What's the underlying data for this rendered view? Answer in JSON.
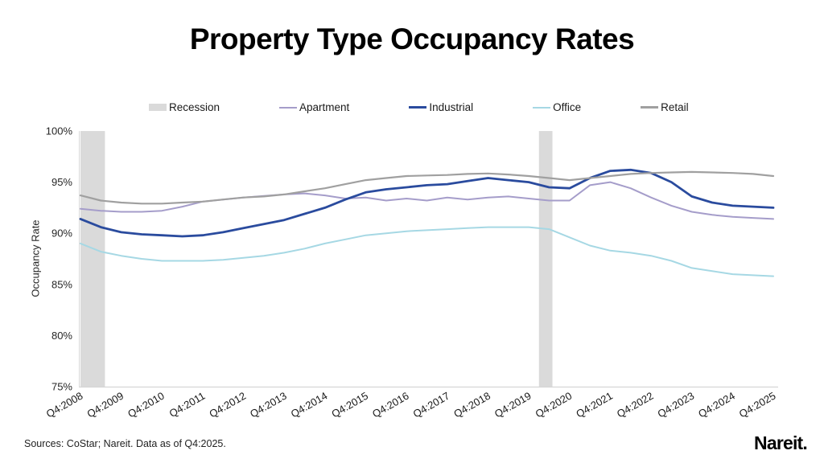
{
  "title": "Property Type Occupancy Rates",
  "legend": {
    "items": [
      "Recession",
      "Apartment",
      "Industrial",
      "Office",
      "Retail"
    ]
  },
  "chart_data": {
    "type": "line",
    "title": "Property Type Occupancy Rates",
    "xlabel": "",
    "ylabel": "Occupancy Rate",
    "ylim": [
      75,
      100
    ],
    "grid": false,
    "legend_position": "top",
    "y_axis": {
      "tick_values": [
        100,
        95,
        90,
        85,
        80,
        75
      ],
      "tick_labels": [
        "100%",
        "95%",
        "90%",
        "85%",
        "80%",
        "75%"
      ]
    },
    "x_axis": {
      "labels": [
        "Q4:2008",
        "Q4:2009",
        "Q4:2010",
        "Q4:2011",
        "Q4:2012",
        "Q4:2013",
        "Q4:2014",
        "Q4:2015",
        "Q4:2016",
        "Q4:2017",
        "Q4:2018",
        "Q4:2019",
        "Q4:2020",
        "Q4:2021",
        "Q4:2022",
        "Q4:2023",
        "Q4:2024",
        "Q4:2025"
      ],
      "angle_deg": -30
    },
    "sampling": {
      "start": "Q4:2008",
      "end": "Q4:2025",
      "points_per_year": 2
    },
    "recession_bands": [
      {
        "t_start": 0,
        "t_end": 0.6
      },
      {
        "t_start": 11.25,
        "t_end": 11.58
      }
    ],
    "band_color": "#dadada",
    "series": [
      {
        "name": "Apartment",
        "color": "#a59dca",
        "stroke_width": 2,
        "values": [
          92.4,
          92.2,
          92.1,
          92.1,
          92.2,
          92.6,
          93.1,
          93.3,
          93.5,
          93.65,
          93.8,
          93.9,
          93.7,
          93.4,
          93.5,
          93.2,
          93.4,
          93.2,
          93.5,
          93.3,
          93.5,
          93.6,
          93.4,
          93.2,
          93.2,
          94.7,
          95.0,
          94.4,
          93.5,
          92.7,
          92.1,
          91.8,
          91.6,
          91.5,
          91.4
        ]
      },
      {
        "name": "Industrial",
        "color": "#2a4b9e",
        "stroke_width": 2.8,
        "values": [
          91.4,
          90.6,
          90.1,
          89.9,
          89.8,
          89.7,
          89.8,
          90.1,
          90.5,
          90.9,
          91.3,
          91.9,
          92.5,
          93.3,
          94.0,
          94.3,
          94.5,
          94.7,
          94.8,
          95.1,
          95.4,
          95.2,
          95.0,
          94.5,
          94.4,
          95.4,
          96.1,
          96.2,
          95.9,
          95.0,
          93.6,
          93.0,
          92.7,
          92.6,
          92.5
        ]
      },
      {
        "name": "Office",
        "color": "#a6d8e4",
        "stroke_width": 2,
        "values": [
          89.0,
          88.2,
          87.8,
          87.5,
          87.3,
          87.3,
          87.3,
          87.4,
          87.6,
          87.8,
          88.1,
          88.5,
          89.0,
          89.4,
          89.8,
          90.0,
          90.2,
          90.3,
          90.4,
          90.5,
          90.6,
          90.6,
          90.6,
          90.4,
          89.6,
          88.8,
          88.3,
          88.1,
          87.8,
          87.3,
          86.6,
          86.3,
          86.0,
          85.9,
          85.8
        ]
      },
      {
        "name": "Retail",
        "color": "#a0a0a0",
        "stroke_width": 2.2,
        "values": [
          93.7,
          93.2,
          93.0,
          92.9,
          92.9,
          93.0,
          93.1,
          93.3,
          93.5,
          93.6,
          93.8,
          94.1,
          94.4,
          94.8,
          95.2,
          95.4,
          95.6,
          95.65,
          95.7,
          95.8,
          95.85,
          95.75,
          95.6,
          95.4,
          95.2,
          95.4,
          95.6,
          95.8,
          95.9,
          95.95,
          96.0,
          95.95,
          95.9,
          95.8,
          95.6
        ]
      }
    ]
  },
  "footer": {
    "source_note": "Sources: CoStar; Nareit. Data as of Q4:2025.",
    "brand": "Nareit."
  }
}
